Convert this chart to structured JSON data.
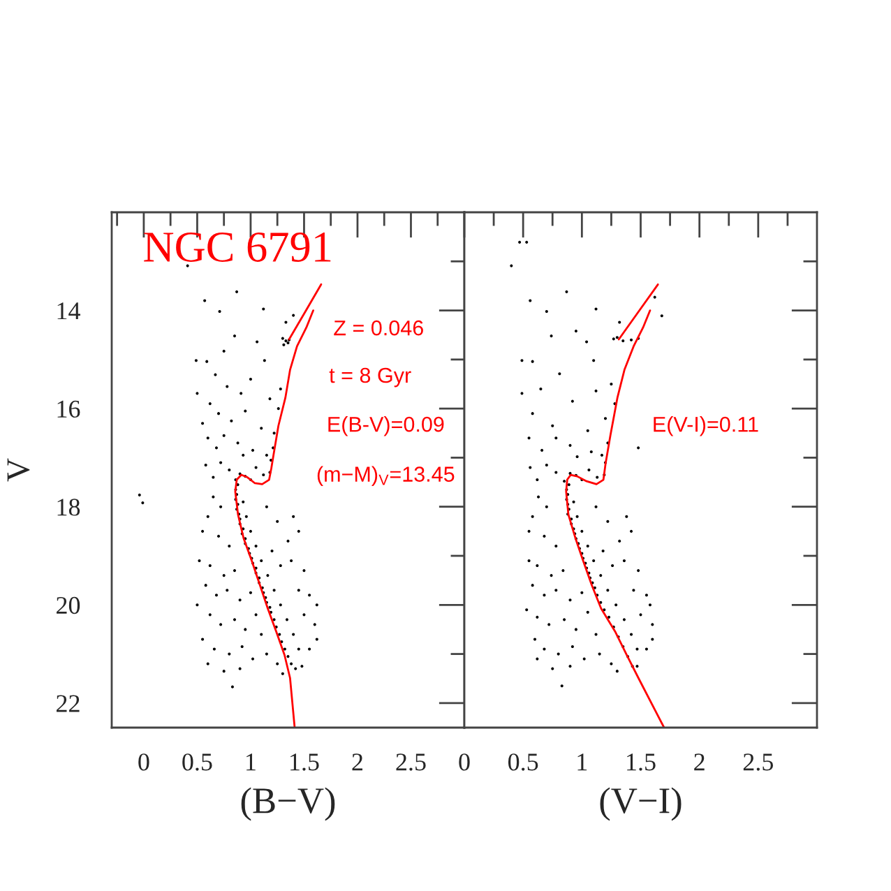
{
  "chart_data": [
    {
      "type": "scatter",
      "title": "NGC 6791",
      "xlabel": "(B−V)",
      "ylabel": "V",
      "annotations": [
        "Z = 0.046",
        "t = 8 Gyr",
        "E(B-V)=0.09",
        "(m−M)$_{V}$=13.45"
      ],
      "xlim": [
        -0.3,
        3.0
      ],
      "ylim": [
        22.5,
        12.0
      ],
      "xticks": [
        {
          "value": -0.25,
          "label": null
        },
        0,
        {
          "value": 0.25,
          "label": null
        },
        0.5,
        {
          "value": 0.75,
          "label": null
        },
        1,
        {
          "value": 1.25,
          "label": null
        },
        1.5,
        {
          "value": 1.75,
          "label": null
        },
        2,
        {
          "value": 2.25,
          "label": null
        },
        2.5,
        {
          "value": 2.75,
          "label": null
        }
      ],
      "yticks": [
        {
          "value": 13,
          "label": null
        },
        14,
        {
          "value": 15,
          "label": null
        },
        16,
        {
          "value": 17,
          "label": null
        },
        18,
        {
          "value": 19,
          "label": null
        },
        20,
        {
          "value": 21,
          "label": null
        },
        22
      ],
      "series": [
        {
          "color": "#000000",
          "marker": "circle",
          "x": [
            0.41,
            0.87,
            0.57,
            0.71,
            1.12,
            1.33,
            1.4,
            0.85,
            0.75,
            0.49,
            0.59,
            1.13,
            1.06,
            0.91,
            0.5,
            0.67,
            1.3,
            1.33,
            1.36,
            1.35,
            1.31,
            0.62,
            0.78,
            1.0,
            1.18,
            1.28,
            1.26,
            0.7,
            0.55,
            0.82,
            0.95,
            1.1,
            1.22,
            0.6,
            0.68,
            0.75,
            0.88,
            0.93,
            1.02,
            1.15,
            1.21,
            1.19,
            0.72,
            0.8,
            0.65,
            0.58,
            1.05,
            1.12,
            1.18,
            1.0,
            0.95,
            0.9,
            0.86,
            -0.04,
            -0.01,
            0.88,
            0.86,
            0.87,
            0.86,
            0.88,
            0.87,
            0.89,
            0.9,
            0.9,
            0.93,
            0.92,
            0.95,
            0.95,
            0.98,
            0.99,
            1.01,
            1.02,
            1.05,
            1.05,
            1.08,
            1.08,
            1.11,
            1.12,
            1.14,
            1.15,
            1.18,
            1.19,
            1.22,
            1.24,
            1.27,
            1.29,
            1.32,
            1.35,
            1.38,
            1.42,
            0.93,
            0.96,
            1.0,
            1.05,
            1.1,
            1.16,
            1.22,
            1.28,
            1.34,
            1.4,
            1.45,
            0.65,
            0.72,
            0.6,
            1.15,
            1.25,
            1.4,
            1.45,
            0.55,
            0.7,
            0.8,
            1.2,
            1.35,
            0.52,
            0.62,
            0.75,
            0.85,
            1.28,
            1.38,
            1.5,
            0.58,
            0.68,
            0.78,
            0.9,
            1.0,
            1.45,
            1.55,
            0.5,
            0.62,
            0.72,
            0.85,
            0.95,
            1.05,
            1.1,
            1.5,
            1.6,
            1.62,
            0.55,
            0.66,
            0.8,
            0.92,
            1.02,
            1.15,
            1.25,
            1.55,
            1.62,
            0.6,
            0.75,
            0.9,
            1.3,
            1.48,
            0.83
          ],
          "values": [
            13.09,
            13.62,
            13.8,
            14.02,
            13.97,
            14.24,
            14.1,
            14.52,
            14.83,
            15.02,
            15.04,
            15.02,
            14.64,
            15.69,
            15.69,
            15.31,
            14.57,
            14.62,
            14.6,
            14.66,
            14.7,
            15.9,
            15.55,
            15.4,
            15.8,
            15.6,
            16.0,
            16.1,
            16.3,
            16.25,
            16.05,
            16.4,
            16.5,
            16.6,
            16.8,
            16.55,
            16.7,
            16.95,
            16.85,
            16.95,
            16.8,
            17.05,
            17.1,
            17.25,
            17.4,
            17.15,
            17.2,
            17.35,
            17.3,
            17.45,
            17.38,
            17.33,
            17.45,
            17.76,
            17.92,
            17.55,
            17.65,
            17.75,
            17.85,
            17.95,
            18.05,
            18.15,
            18.25,
            18.35,
            18.45,
            18.55,
            18.65,
            18.75,
            18.85,
            18.95,
            19.05,
            19.15,
            19.25,
            19.35,
            19.45,
            19.55,
            19.65,
            19.75,
            19.85,
            19.95,
            20.05,
            20.15,
            20.3,
            20.45,
            20.6,
            20.75,
            20.9,
            21.05,
            21.2,
            21.3,
            17.9,
            18.2,
            18.5,
            18.8,
            19.1,
            19.4,
            19.7,
            20.0,
            20.3,
            20.6,
            20.9,
            17.8,
            18.0,
            18.2,
            18.0,
            18.3,
            18.2,
            18.5,
            18.5,
            18.6,
            18.8,
            18.9,
            18.7,
            19.1,
            19.2,
            19.4,
            19.3,
            19.2,
            19.1,
            19.3,
            19.6,
            19.8,
            19.7,
            19.9,
            19.75,
            19.7,
            19.8,
            20.0,
            20.2,
            20.4,
            20.3,
            20.5,
            20.2,
            20.6,
            20.2,
            20.4,
            20.0,
            20.7,
            20.9,
            21.0,
            20.85,
            21.1,
            21.0,
            21.2,
            20.9,
            20.7,
            21.2,
            21.35,
            21.3,
            21.4,
            21.25,
            21.67
          ]
        },
        {
          "type": "line",
          "color": "#ff0000",
          "x": [
            1.412,
            1.369,
            1.317,
            1.239,
            1.16,
            1.086,
            1.012,
            0.934,
            0.882,
            0.856,
            0.87,
            0.913,
            0.97,
            1.04,
            1.108,
            1.173,
            1.194,
            1.216,
            1.26,
            1.325,
            1.369,
            1.434,
            1.521,
            1.586
          ],
          "values": [
            22.5,
            21.49,
            21.02,
            20.54,
            20.07,
            19.59,
            19.11,
            18.64,
            18.16,
            17.69,
            17.45,
            17.35,
            17.4,
            17.52,
            17.54,
            17.45,
            17.21,
            16.92,
            16.35,
            15.78,
            15.21,
            14.73,
            14.35,
            14.0
          ]
        },
        {
          "type": "line",
          "color": "#ff0000",
          "x": [
            1.36,
            1.51,
            1.66
          ],
          "values": [
            14.59,
            14.03,
            13.47
          ]
        }
      ]
    },
    {
      "type": "scatter",
      "xlabel": "(V−I)",
      "annotations": [
        "E(V-I)=0.11"
      ],
      "xlim": [
        0,
        3.0
      ],
      "ylim": [
        22.5,
        12.0
      ],
      "tick_labels": "x",
      "xticks": [
        0,
        {
          "value": 0.25,
          "label": null
        },
        0.5,
        {
          "value": 0.75,
          "label": null
        },
        1,
        {
          "value": 1.25,
          "label": null
        },
        1.5,
        {
          "value": 1.75,
          "label": null
        },
        2,
        {
          "value": 2.25,
          "label": null
        },
        2.5,
        {
          "value": 2.75,
          "label": null
        }
      ],
      "yticks": [
        {
          "value": 13,
          "label": null
        },
        14,
        {
          "value": 15,
          "label": null
        },
        16,
        {
          "value": 17,
          "label": null
        },
        18,
        {
          "value": 19,
          "label": null
        },
        20,
        {
          "value": 21,
          "label": null
        },
        22
      ],
      "series": [
        {
          "color": "#000000",
          "marker": "circle",
          "x": [
            0.47,
            0.53,
            0.4,
            0.87,
            0.56,
            0.7,
            1.12,
            0.95,
            0.74,
            1.04,
            1.32,
            1.62,
            1.68,
            1.27,
            1.3,
            1.35,
            1.42,
            1.48,
            0.49,
            0.58,
            1.1,
            0.81,
            0.49,
            1.12,
            1.48,
            1.25,
            1.28,
            0.65,
            0.92,
            1.2,
            0.58,
            0.75,
            1.05,
            0.55,
            0.66,
            0.78,
            0.9,
            0.96,
            1.08,
            1.17,
            1.22,
            1.2,
            0.7,
            0.78,
            0.62,
            0.56,
            1.06,
            1.13,
            1.19,
            1.0,
            0.95,
            0.9,
            0.85,
            0.89,
            0.87,
            0.88,
            0.87,
            0.88,
            0.89,
            0.88,
            0.91,
            0.91,
            0.93,
            0.94,
            0.95,
            0.97,
            0.98,
            1.0,
            1.01,
            1.03,
            1.04,
            1.06,
            1.07,
            1.09,
            1.11,
            1.13,
            1.16,
            1.19,
            1.23,
            1.27,
            1.31,
            1.35,
            1.39,
            1.43,
            0.93,
            0.96,
            1.0,
            1.05,
            1.1,
            1.16,
            1.22,
            1.29,
            1.36,
            1.42,
            1.47,
            0.63,
            0.7,
            0.58,
            1.12,
            1.22,
            1.38,
            1.42,
            0.55,
            0.68,
            0.78,
            1.18,
            1.32,
            0.55,
            0.62,
            0.74,
            0.84,
            1.26,
            1.36,
            1.48,
            0.58,
            0.68,
            0.78,
            0.9,
            1.0,
            1.44,
            1.55,
            0.53,
            0.62,
            0.72,
            0.85,
            0.95,
            1.05,
            1.12,
            1.5,
            1.6,
            1.58,
            0.6,
            0.68,
            0.8,
            0.92,
            1.02,
            1.15,
            1.25,
            1.55,
            1.6,
            0.62,
            0.75,
            0.9,
            1.3,
            1.47,
            0.83
          ],
          "values": [
            12.61,
            12.61,
            13.09,
            13.62,
            13.8,
            14.02,
            13.97,
            14.42,
            14.52,
            14.64,
            14.24,
            13.73,
            14.11,
            14.58,
            14.55,
            14.62,
            14.6,
            14.57,
            15.02,
            15.04,
            15.02,
            15.29,
            15.69,
            15.64,
            16.8,
            15.5,
            15.9,
            15.6,
            15.85,
            16.2,
            16.1,
            16.35,
            16.45,
            16.6,
            16.85,
            16.6,
            16.75,
            16.98,
            16.88,
            16.95,
            16.7,
            17.1,
            17.15,
            17.3,
            17.45,
            17.2,
            17.25,
            17.4,
            17.35,
            17.45,
            17.36,
            17.32,
            17.48,
            17.55,
            17.65,
            17.75,
            17.85,
            17.95,
            18.05,
            18.15,
            18.25,
            18.35,
            18.45,
            18.55,
            18.65,
            18.75,
            18.85,
            18.95,
            19.05,
            19.15,
            19.25,
            19.35,
            19.45,
            19.55,
            19.65,
            19.8,
            19.95,
            20.1,
            20.25,
            20.45,
            20.65,
            20.85,
            21.05,
            21.25,
            17.9,
            18.2,
            18.5,
            18.8,
            19.1,
            19.4,
            19.7,
            20.0,
            20.3,
            20.6,
            20.9,
            17.8,
            18.0,
            18.2,
            18.0,
            18.3,
            18.2,
            18.5,
            18.5,
            18.6,
            18.8,
            18.9,
            18.7,
            19.1,
            19.2,
            19.4,
            19.3,
            19.2,
            19.1,
            19.3,
            19.6,
            19.8,
            19.7,
            19.9,
            19.75,
            19.7,
            19.8,
            20.1,
            20.25,
            20.4,
            20.3,
            20.5,
            20.15,
            20.6,
            20.2,
            20.4,
            20.0,
            20.7,
            20.9,
            21.0,
            20.85,
            21.1,
            21.0,
            21.2,
            20.9,
            20.7,
            21.1,
            21.3,
            21.25,
            21.35,
            21.25,
            21.65
          ]
        },
        {
          "type": "line",
          "color": "#ff0000",
          "x": [
            1.699,
            1.481,
            1.381,
            1.282,
            1.163,
            1.083,
            1.012,
            0.945,
            0.885,
            0.866,
            0.875,
            0.905,
            0.96,
            1.04,
            1.124,
            1.183,
            1.202,
            1.243,
            1.302,
            1.362,
            1.44,
            1.52,
            1.58
          ],
          "values": [
            22.5,
            21.49,
            21.02,
            20.54,
            20.07,
            19.59,
            19.11,
            18.64,
            18.16,
            17.69,
            17.45,
            17.35,
            17.38,
            17.48,
            17.54,
            17.45,
            17.11,
            16.54,
            15.78,
            15.21,
            14.73,
            14.35,
            14.0
          ]
        },
        {
          "type": "line",
          "color": "#ff0000",
          "x": [
            1.314,
            1.48,
            1.647
          ],
          "values": [
            14.59,
            14.03,
            13.47
          ]
        }
      ]
    }
  ]
}
